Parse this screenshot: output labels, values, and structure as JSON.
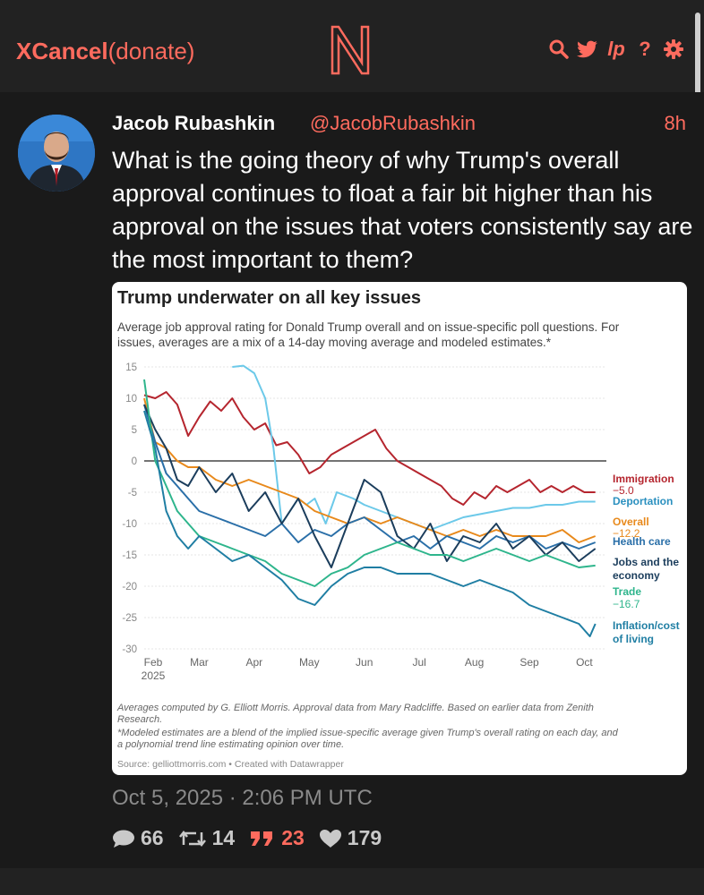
{
  "header": {
    "brand": "XCancel",
    "donate": "(donate)",
    "logo_letter": "N",
    "icons": [
      "search-icon",
      "twitter-bird-icon",
      "liberapay-icon",
      "help-icon",
      "gear-icon"
    ],
    "help_label": "?",
    "lp_label": "lp"
  },
  "colors": {
    "accent": "#ff6b5e",
    "background": "#1a1a1a",
    "bar": "#222222"
  },
  "tweet": {
    "author_name": "Jacob Rubashkin",
    "handle": "@JacobRubashkin",
    "time_ago": "8h",
    "text": "What is the going theory of why Trump's overall approval continues to float a fair bit higher than his approval on the issues that voters consistently say are the most important to them?",
    "date": "Oct 5, 2025 · 2:06 PM UTC",
    "stats": {
      "replies": "66",
      "retweets": "14",
      "quotes": "23",
      "likes": "179"
    }
  },
  "chart_data": {
    "type": "line",
    "title": "Trump underwater on all key issues",
    "subtitle_line1": "Average job approval rating for Donald Trump overall and on issue-specific poll questions. For",
    "subtitle_line2": "issues, averages are a mix of a 14-day moving average and modeled estimates.*",
    "ylim": [
      -30,
      15
    ],
    "y_ticks": [
      15,
      10,
      5,
      0,
      -5,
      -10,
      -15,
      -20,
      -25,
      -30
    ],
    "x_ticks": [
      "Feb",
      "Mar",
      "Apr",
      "May",
      "Jun",
      "Jul",
      "Aug",
      "Sep",
      "Oct"
    ],
    "x_year": "2025",
    "x_range": [
      0,
      8.4
    ],
    "series": [
      {
        "name": "Immigration",
        "value_label": "−5.0",
        "color": "#b5252e",
        "x": [
          0,
          0.2,
          0.4,
          0.6,
          0.8,
          1.0,
          1.2,
          1.4,
          1.6,
          1.8,
          2.0,
          2.2,
          2.4,
          2.6,
          2.8,
          3.0,
          3.2,
          3.4,
          3.6,
          3.8,
          4.0,
          4.2,
          4.4,
          4.6,
          4.8,
          5.0,
          5.2,
          5.4,
          5.6,
          5.8,
          6.0,
          6.2,
          6.4,
          6.6,
          6.8,
          7.0,
          7.2,
          7.4,
          7.6,
          7.8,
          8.0,
          8.2
        ],
        "y": [
          10.5,
          10,
          11,
          9,
          4,
          7,
          9.5,
          8,
          10,
          7,
          5,
          6,
          2.5,
          3,
          1,
          -2,
          -1,
          1,
          2,
          3,
          4,
          5,
          2,
          0,
          -1,
          -2,
          -3,
          -4,
          -6,
          -7,
          -5,
          -6,
          -4,
          -5,
          -4,
          -3,
          -5,
          -4,
          -5,
          -4,
          -5,
          -5
        ]
      },
      {
        "name": "Deportation",
        "value_label": "",
        "color": "#6cc9e9",
        "x": [
          1.6,
          1.8,
          2.0,
          2.2,
          2.35,
          2.5,
          2.65,
          2.8,
          2.95,
          3.1,
          3.3,
          3.5,
          3.8,
          4.0,
          4.3,
          4.6,
          4.9,
          5.2,
          5.5,
          5.8,
          6.1,
          6.4,
          6.7,
          7.0,
          7.3,
          7.6,
          7.9,
          8.2
        ],
        "y": [
          15,
          15.2,
          14,
          10,
          2,
          -10,
          -8,
          -6,
          -7,
          -6,
          -10,
          -5,
          -6,
          -7,
          -8,
          -9,
          -10,
          -11,
          -10,
          -9,
          -8.5,
          -8,
          -7.5,
          -7.5,
          -7,
          -7,
          -6.5,
          -6.5
        ]
      },
      {
        "name": "Overall",
        "value_label": "−12.2",
        "color": "#e8891b",
        "x": [
          0,
          0.2,
          0.4,
          0.6,
          0.8,
          1.0,
          1.3,
          1.6,
          1.9,
          2.2,
          2.5,
          2.8,
          3.1,
          3.4,
          3.7,
          4.0,
          4.3,
          4.6,
          4.9,
          5.2,
          5.5,
          5.8,
          6.1,
          6.4,
          6.7,
          7.0,
          7.3,
          7.6,
          7.9,
          8.2
        ],
        "y": [
          10,
          3,
          2,
          0,
          -1,
          -1,
          -3,
          -4,
          -3,
          -4,
          -5,
          -6,
          -8,
          -9,
          -10,
          -9,
          -10,
          -9,
          -10,
          -11,
          -12,
          -11,
          -12,
          -11,
          -12,
          -12,
          -12,
          -11,
          -13,
          -12
        ]
      },
      {
        "name": "Health care",
        "value_label": "",
        "color": "#2a6fa8",
        "x": [
          0,
          0.2,
          0.4,
          0.6,
          0.8,
          1.0,
          1.3,
          1.6,
          1.9,
          2.2,
          2.5,
          2.8,
          3.1,
          3.4,
          3.7,
          4.0,
          4.3,
          4.6,
          4.9,
          5.2,
          5.5,
          5.8,
          6.1,
          6.4,
          6.7,
          7.0,
          7.3,
          7.6,
          7.9,
          8.2
        ],
        "y": [
          9,
          3,
          -2,
          -4,
          -6,
          -8,
          -9,
          -10,
          -11,
          -12,
          -10,
          -13,
          -11,
          -12,
          -10,
          -9,
          -11,
          -13,
          -12,
          -14,
          -12,
          -13,
          -14,
          -12,
          -13,
          -12,
          -14,
          -13,
          -14,
          -13
        ]
      },
      {
        "name": "Jobs and the economy",
        "value_label": "",
        "color": "#1b3d5c",
        "x": [
          0,
          0.2,
          0.4,
          0.6,
          0.8,
          1.0,
          1.3,
          1.6,
          1.9,
          2.2,
          2.5,
          2.8,
          3.1,
          3.4,
          3.7,
          4.0,
          4.3,
          4.6,
          4.9,
          5.2,
          5.5,
          5.8,
          6.1,
          6.4,
          6.7,
          7.0,
          7.3,
          7.6,
          7.9,
          8.2
        ],
        "y": [
          9,
          5,
          2,
          -3,
          -4,
          -1,
          -5,
          -2,
          -8,
          -5,
          -10,
          -6,
          -12,
          -17,
          -10,
          -3,
          -5,
          -12,
          -14,
          -10,
          -16,
          -12,
          -13,
          -10,
          -14,
          -12,
          -15,
          -13,
          -16,
          -14
        ]
      },
      {
        "name": "Trade",
        "value_label": "−16.7",
        "color": "#2eb58c",
        "x": [
          0,
          0.2,
          0.4,
          0.6,
          0.8,
          1.0,
          1.3,
          1.6,
          1.9,
          2.2,
          2.5,
          2.8,
          3.1,
          3.4,
          3.7,
          4.0,
          4.3,
          4.6,
          4.9,
          5.2,
          5.5,
          5.8,
          6.1,
          6.4,
          6.7,
          7.0,
          7.3,
          7.6,
          7.9,
          8.2
        ],
        "y": [
          13,
          0,
          -4,
          -8,
          -10,
          -12,
          -13,
          -14,
          -15,
          -16,
          -18,
          -19,
          -20,
          -18,
          -17,
          -15,
          -14,
          -13,
          -14,
          -15,
          -15,
          -16,
          -15,
          -14,
          -15,
          -16,
          -15,
          -16,
          -17,
          -16.7
        ]
      },
      {
        "name": "Inflation/cost of living",
        "value_label": "",
        "color": "#1f7ea3",
        "x": [
          0,
          0.2,
          0.4,
          0.6,
          0.8,
          1.0,
          1.3,
          1.6,
          1.9,
          2.2,
          2.5,
          2.8,
          3.1,
          3.4,
          3.7,
          4.0,
          4.3,
          4.6,
          4.9,
          5.2,
          5.5,
          5.8,
          6.1,
          6.4,
          6.7,
          7.0,
          7.3,
          7.6,
          7.9,
          8.1,
          8.2
        ],
        "y": [
          8,
          2,
          -8,
          -12,
          -14,
          -12,
          -14,
          -16,
          -15,
          -17,
          -19,
          -22,
          -23,
          -20,
          -18,
          -17,
          -17,
          -18,
          -18,
          -18,
          -19,
          -20,
          -19,
          -20,
          -21,
          -23,
          -24,
          -25,
          -26,
          -28,
          -26
        ]
      }
    ],
    "footnote1": "Averages computed by G. Elliott Morris. Approval data from Mary Radcliffe. Based on earlier data from Zenith",
    "footnote1b": "Research.",
    "footnote2": "*Modeled estimates are a blend of the implied issue-specific average given Trump's overall rating on each day, and",
    "footnote2b": "a polynomial trend line estimating opinion over time.",
    "source": "Source: gelliottmorris.com • Created with Datawrapper",
    "labels": {
      "immigration": "Immigration",
      "immigration_val": "−5.0",
      "deportation": "Deportation",
      "overall": "Overall",
      "overall_val": "−12.2",
      "health": "Health care",
      "jobs1": "Jobs and the",
      "jobs2": "economy",
      "trade": "Trade",
      "trade_val": "−16.7",
      "infl1": "Inflation/cost",
      "infl2": "of living"
    }
  }
}
